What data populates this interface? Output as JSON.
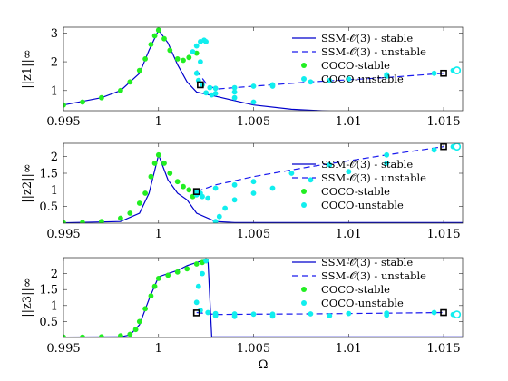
{
  "colors": {
    "ssm_stable": "#0000cc",
    "ssm_unstable": "#1a1aee",
    "coco_stable": "#22ee22",
    "coco_unstable": "#11eeee",
    "endpoint": "#000000"
  },
  "chart_data": [
    {
      "type": "line",
      "ylabel": "||z1||∞",
      "xlim": [
        0.995,
        1.016
      ],
      "ylim": [
        0.3,
        3.2
      ],
      "xticks": [
        "0.995",
        "1",
        "1.005",
        "1.01",
        "1.015"
      ],
      "yticks": [
        "1",
        "2",
        "3"
      ],
      "legend": {
        "placement": "top-right",
        "entries": [
          "SSM-𝒪(3) - stable",
          "SSM-𝒪(3) - unstable",
          "COCO-stable",
          "COCO-unstable"
        ]
      },
      "series": [
        {
          "name": "SSM-𝒪(3) - stable",
          "style": "solid",
          "x": [
            0.995,
            0.997,
            0.998,
            0.999,
            0.9995,
            1.0,
            1.0005,
            1.001,
            1.0015,
            1.002,
            1.003,
            1.004,
            1.005,
            1.007,
            1.01,
            1.013,
            1.016
          ],
          "y": [
            0.5,
            0.75,
            1.0,
            1.6,
            2.4,
            3.1,
            2.65,
            1.9,
            1.3,
            0.95,
            0.8,
            0.65,
            0.5,
            0.35,
            0.25,
            0.2,
            0.16
          ]
        },
        {
          "name": "SSM-𝒪(3) - unstable",
          "style": "dashed",
          "x": [
            1.002,
            1.0025,
            1.003,
            1.005,
            1.008,
            1.012,
            1.015
          ],
          "y": [
            1.7,
            1.25,
            1.05,
            1.15,
            1.3,
            1.45,
            1.6
          ]
        },
        {
          "name": "COCO-stable",
          "style": "dots",
          "x": [
            0.995,
            0.996,
            0.997,
            0.998,
            0.9985,
            0.999,
            0.9993,
            0.9996,
            0.9998,
            1.0,
            1.0003,
            1.0006,
            1.001,
            1.0013,
            1.0016,
            1.002
          ],
          "y": [
            0.5,
            0.6,
            0.75,
            1.0,
            1.3,
            1.7,
            2.1,
            2.6,
            2.9,
            3.1,
            2.8,
            2.4,
            2.1,
            2.05,
            2.15,
            2.3
          ]
        },
        {
          "name": "COCO-unstable",
          "style": "dots",
          "x": [
            1.0018,
            1.002,
            1.0022,
            1.0024,
            1.0025,
            1.0022,
            1.002,
            1.0021,
            1.0023,
            1.0027,
            1.003,
            1.004,
            1.005,
            1.006,
            1.008,
            1.01,
            1.012,
            1.0145,
            1.0155,
            1.012,
            1.009,
            1.006,
            1.004,
            1.003,
            1.0025,
            1.0028,
            1.004,
            1.005
          ],
          "y": [
            2.35,
            2.55,
            2.7,
            2.75,
            2.7,
            2.0,
            1.6,
            1.35,
            1.2,
            1.1,
            1.08,
            1.1,
            1.15,
            1.2,
            1.3,
            1.4,
            1.5,
            1.6,
            1.7,
            1.55,
            1.35,
            1.15,
            0.95,
            0.9,
            0.92,
            0.85,
            0.75,
            0.6
          ]
        }
      ],
      "endpoints": {
        "x": [
          1.0022,
          1.015
        ],
        "y": [
          1.2,
          1.6
        ]
      },
      "open_marker": {
        "x": 1.0157,
        "y": 1.7
      }
    },
    {
      "type": "line",
      "ylabel": "||z2||∞",
      "xlim": [
        0.995,
        1.016
      ],
      "ylim": [
        0,
        2.4
      ],
      "xticks": [
        "0.995",
        "1",
        "1.005",
        "1.01",
        "1.015"
      ],
      "yticks": [
        "0.5",
        "1",
        "1.5",
        "2"
      ],
      "legend": {
        "placement": "right",
        "entries": [
          "SSM-𝒪(3) - stable",
          "SSM-𝒪(3) - unstable",
          "COCO-stable",
          "COCO-unstable"
        ]
      },
      "series": [
        {
          "name": "SSM-𝒪(3) - stable",
          "style": "solid",
          "x": [
            0.995,
            0.998,
            0.999,
            0.9995,
            1.0,
            1.0005,
            1.001,
            1.0015,
            1.002,
            1.003,
            1.004,
            1.006,
            1.01,
            1.016
          ],
          "y": [
            0.01,
            0.05,
            0.3,
            0.9,
            2.05,
            1.3,
            0.9,
            0.7,
            0.3,
            0.05,
            0.02,
            0.02,
            0.02,
            0.02
          ]
        },
        {
          "name": "SSM-𝒪(3) - unstable",
          "style": "dashed",
          "x": [
            1.002,
            1.003,
            1.005,
            1.008,
            1.012,
            1.015
          ],
          "y": [
            0.95,
            1.15,
            1.4,
            1.7,
            2.05,
            2.3
          ]
        },
        {
          "name": "COCO-stable",
          "style": "dots",
          "x": [
            0.995,
            0.996,
            0.997,
            0.998,
            0.9985,
            0.999,
            0.9993,
            0.9996,
            0.9998,
            1.0,
            1.0003,
            1.0006,
            1.001,
            1.0013,
            1.0016,
            1.002,
            1.0018
          ],
          "y": [
            0.01,
            0.02,
            0.05,
            0.15,
            0.3,
            0.6,
            0.9,
            1.4,
            1.8,
            2.05,
            1.8,
            1.5,
            1.25,
            1.1,
            1.0,
            0.95,
            0.8
          ]
        },
        {
          "name": "COCO-unstable",
          "style": "dots",
          "x": [
            1.002,
            1.0023,
            1.0026,
            1.003,
            1.0032,
            1.0035,
            1.004,
            1.005,
            1.006,
            1.008,
            1.01,
            1.012,
            1.0145,
            1.0155,
            1.012,
            1.009,
            1.007,
            1.005,
            1.004,
            1.003,
            1.002,
            1.0022
          ],
          "y": [
            0.85,
            0.8,
            0.75,
            0.05,
            0.2,
            0.45,
            0.7,
            0.9,
            1.05,
            1.3,
            1.55,
            1.8,
            2.2,
            2.3,
            2.05,
            1.75,
            1.5,
            1.25,
            1.15,
            1.05,
            0.95,
            0.9
          ]
        }
      ],
      "endpoints": {
        "x": [
          1.002,
          1.015
        ],
        "y": [
          0.95,
          2.3
        ]
      },
      "open_marker": {
        "x": 1.0157,
        "y": 2.3
      }
    },
    {
      "type": "line",
      "ylabel": "||z3||∞",
      "xlabel": "Ω",
      "xlim": [
        0.995,
        1.016
      ],
      "ylim": [
        0,
        2.5
      ],
      "xticks": [
        "0.995",
        "1",
        "1.005",
        "1.01",
        "1.015"
      ],
      "yticks": [
        "0.5",
        "1",
        "1.5",
        "2"
      ],
      "legend": {
        "placement": "top-right",
        "entries": [
          "SSM-𝒪(3) - stable",
          "SSM-𝒪(3) - unstable",
          "COCO-stable",
          "COCO-unstable"
        ]
      },
      "series": [
        {
          "name": "SSM-𝒪(3) - stable",
          "style": "solid",
          "x": [
            0.995,
            0.998,
            0.9985,
            0.999,
            0.9995,
            1.0,
            1.0005,
            1.001,
            1.0015,
            1.002,
            1.0023,
            1.0026,
            1.0028,
            1.006,
            1.01,
            1.016
          ],
          "y": [
            0.01,
            0.02,
            0.08,
            0.4,
            1.2,
            1.9,
            2.0,
            2.1,
            2.25,
            2.35,
            2.4,
            2.45,
            0.02,
            0.02,
            0.02,
            0.02
          ]
        },
        {
          "name": "SSM-𝒪(3) - unstable",
          "style": "dashed",
          "x": [
            1.002,
            1.003,
            1.005,
            1.008,
            1.012,
            1.015
          ],
          "y": [
            0.78,
            0.72,
            0.73,
            0.74,
            0.76,
            0.78
          ]
        },
        {
          "name": "COCO-stable",
          "style": "dots",
          "x": [
            0.995,
            0.996,
            0.997,
            0.998,
            0.9985,
            0.9988,
            0.999,
            0.9993,
            0.9996,
            0.9998,
            1.0,
            1.0005,
            1.001,
            1.0015,
            1.002,
            1.0023,
            1.0025
          ],
          "y": [
            0.01,
            0.01,
            0.02,
            0.05,
            0.1,
            0.25,
            0.5,
            0.9,
            1.3,
            1.6,
            1.85,
            1.95,
            2.05,
            2.15,
            2.3,
            2.35,
            2.4
          ]
        },
        {
          "name": "COCO-unstable",
          "style": "dots",
          "x": [
            1.0025,
            1.0023,
            1.0021,
            1.002,
            1.0022,
            1.0026,
            1.003,
            1.004,
            1.005,
            1.006,
            1.008,
            1.01,
            1.012,
            1.0145,
            1.0155,
            1.012,
            1.009,
            1.006,
            1.004,
            1.003
          ],
          "y": [
            2.4,
            2.0,
            1.6,
            1.1,
            0.85,
            0.78,
            0.75,
            0.74,
            0.73,
            0.73,
            0.74,
            0.75,
            0.76,
            0.78,
            0.72,
            0.7,
            0.68,
            0.67,
            0.66,
            0.68
          ]
        }
      ],
      "endpoints": {
        "x": [
          1.002,
          1.015
        ],
        "y": [
          0.77,
          0.78
        ]
      },
      "open_marker": {
        "x": 1.0157,
        "y": 0.72
      }
    }
  ]
}
